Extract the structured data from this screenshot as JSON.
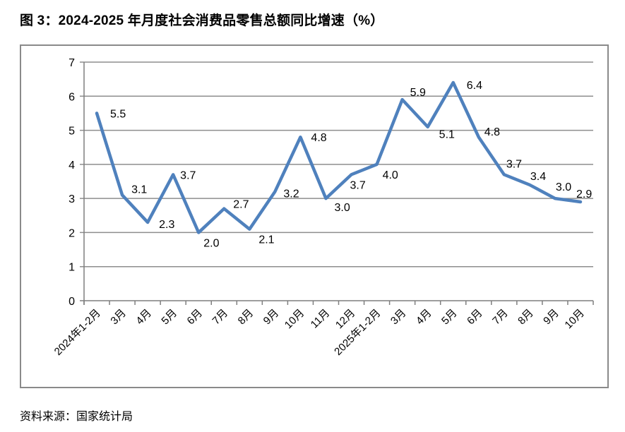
{
  "figure": {
    "title": "图 3：2024-2025 年月度社会消费品零售总额同比增速（%）",
    "source": "资料来源：国家统计局"
  },
  "colors": {
    "line": "#4F81BD",
    "grid": "#8E8E8E",
    "axis": "#7F7F7F",
    "frame_border": "#8A8A8A",
    "text": "#000000"
  },
  "chart_data": {
    "type": "line",
    "title": "图 3：2024-2025 年月度社会消费品零售总额同比增速（%）",
    "categories": [
      "2024年1-2月",
      "3月",
      "4月",
      "5月",
      "6月",
      "7月",
      "8月",
      "9月",
      "10月",
      "11月",
      "12月",
      "2025年1-2月",
      "3月",
      "4月",
      "5月",
      "6月",
      "7月",
      "8月",
      "9月",
      "10月"
    ],
    "values": [
      5.5,
      3.1,
      2.3,
      3.7,
      2.0,
      2.7,
      2.1,
      3.2,
      4.8,
      3.0,
      3.7,
      4.0,
      5.9,
      5.1,
      6.4,
      4.8,
      3.7,
      3.4,
      3.0,
      2.9
    ],
    "xlabel": "",
    "ylabel": "",
    "ylim": [
      0,
      7
    ],
    "yticks": [
      0,
      1,
      2,
      3,
      4,
      5,
      6,
      7
    ],
    "grid": true,
    "legend": "none",
    "data_labels": true,
    "data_label_format": "0.0"
  }
}
